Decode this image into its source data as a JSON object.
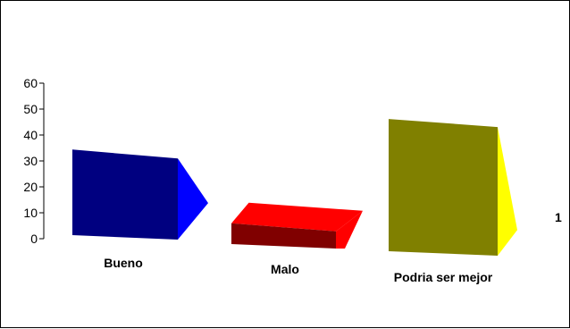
{
  "chart_data": {
    "type": "bar",
    "view": "3d",
    "categories": [
      "Bueno",
      "Malo",
      "Podria ser mejor"
    ],
    "values": [
      33,
      8,
      51
    ],
    "ylim": [
      0,
      60
    ],
    "yticks": [
      "0",
      "10",
      "20",
      "30",
      "40",
      "50",
      "60"
    ],
    "grid": false,
    "legend": {
      "placement": "right",
      "entries": [
        "1"
      ]
    },
    "colors": [
      {
        "front": "#000080",
        "side": "#0000FF",
        "top": "#000066"
      },
      {
        "front": "#800000",
        "side": "#FF0000",
        "top": "#CC0000"
      },
      {
        "front": "#808000",
        "side": "#FFFF00",
        "top": "#666600"
      }
    ]
  }
}
